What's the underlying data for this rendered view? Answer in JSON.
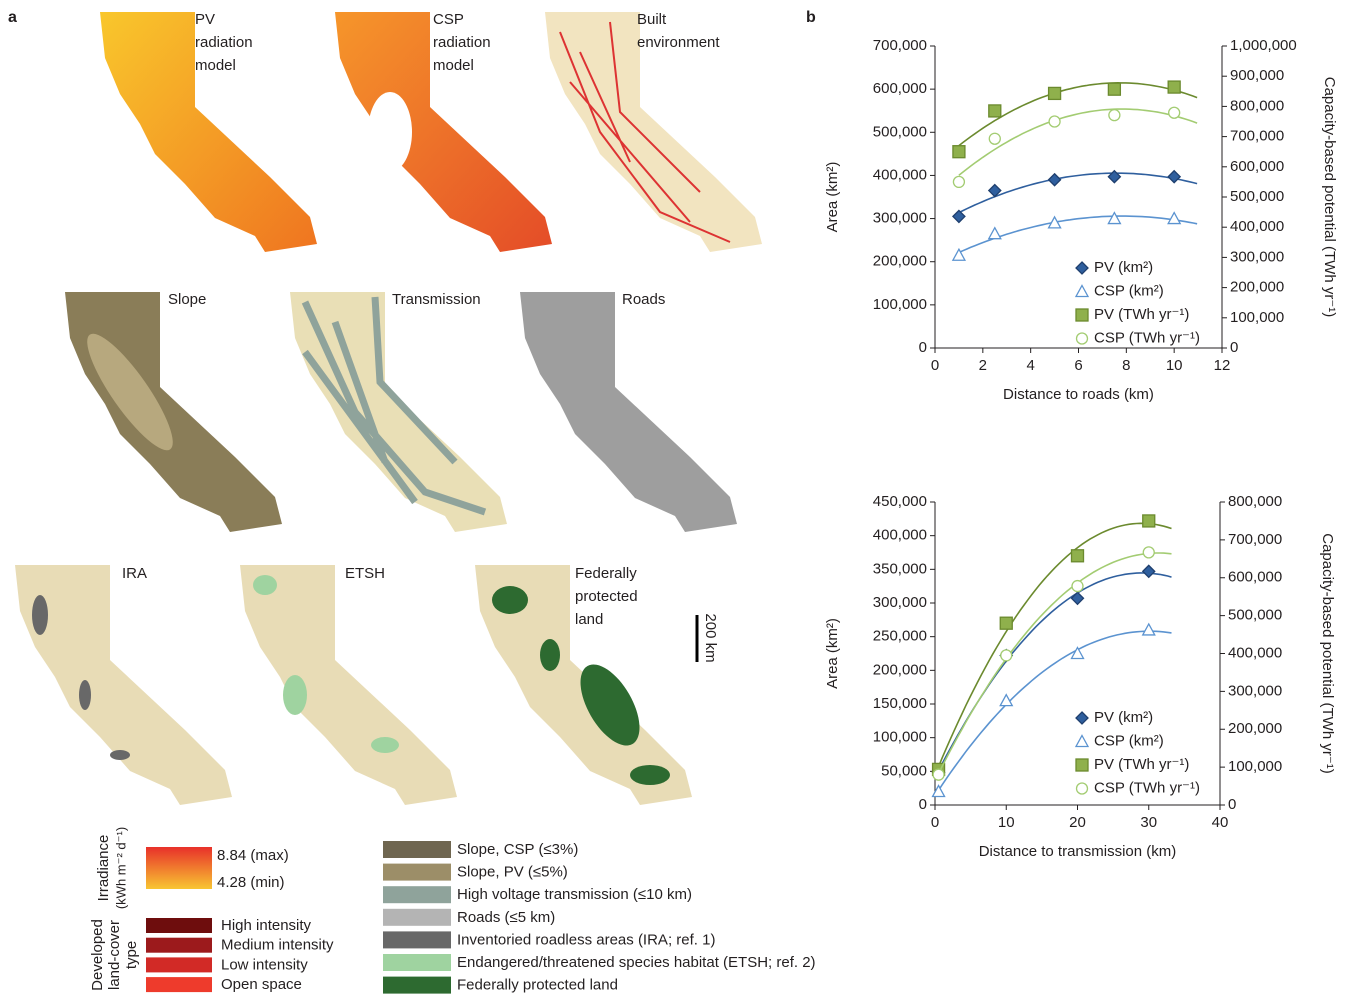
{
  "panel_labels": [
    "a",
    "b"
  ],
  "maps": [
    {
      "label": [
        "PV",
        "radiation",
        "model"
      ]
    },
    {
      "label": [
        "CSP",
        "radiation",
        "model"
      ]
    },
    {
      "label": [
        "Built",
        "environment"
      ]
    },
    {
      "label": [
        "Slope"
      ]
    },
    {
      "label": [
        "Transmission"
      ]
    },
    {
      "label": [
        "Roads"
      ]
    },
    {
      "label": [
        "IRA"
      ]
    },
    {
      "label": [
        "ETSH"
      ]
    },
    {
      "label": [
        "Federally",
        "protected",
        "land"
      ]
    }
  ],
  "scale_bar": "200 km",
  "irradiance_legend": {
    "title": [
      "Irradiance",
      "(kWh m⁻² d⁻¹)"
    ],
    "max": "8.84 (max)",
    "min": "4.28 (min)"
  },
  "landcover_legend": {
    "title": [
      "Developed",
      "land-cover",
      "type"
    ],
    "items": [
      {
        "name": "High intensity",
        "color": "#6e0d0d"
      },
      {
        "name": "Medium intensity",
        "color": "#9c1a1c"
      },
      {
        "name": "Low intensity",
        "color": "#d22a26"
      },
      {
        "name": "Open space",
        "color": "#ee3b2c"
      }
    ]
  },
  "layer_legend": [
    {
      "name": "Slope, CSP (≤3%)",
      "color": "#6f6650"
    },
    {
      "name": "Slope, PV (≤5%)",
      "color": "#9c8e68"
    },
    {
      "name": "High voltage transmission (≤10 km)",
      "color": "#8fa39b"
    },
    {
      "name": "Roads (≤5 km)",
      "color": "#b4b4b4"
    },
    {
      "name": "Inventoried roadless areas (IRA; ref. 1)",
      "color": "#686868"
    },
    {
      "name": "Endangered/threatened species habitat (ETSH; ref. 2)",
      "color": "#9fd3a0"
    },
    {
      "name": "Federally protected land",
      "color": "#2d6a30"
    }
  ],
  "chart_data": [
    {
      "type": "scatter",
      "x_label": "Distance to roads (km)",
      "y_label": "Area (km²)",
      "y2_label": "Capacity-based potential (TWh yr⁻¹)",
      "x": [
        1,
        2.5,
        5,
        7.5,
        10
      ],
      "xlim": [
        0,
        12
      ],
      "xticks": [
        0,
        2,
        4,
        6,
        8,
        10,
        12
      ],
      "ylim": [
        0,
        700000
      ],
      "yticks": [
        0,
        {
          "value": 100000,
          "label": "100,000"
        },
        {
          "value": 200000,
          "label": "200,000"
        },
        {
          "value": 300000,
          "label": "300,000"
        },
        {
          "value": 400000,
          "label": "400,000"
        },
        {
          "value": 500000,
          "label": "500,000"
        },
        {
          "value": 600000,
          "label": "600,000"
        },
        {
          "value": 700000,
          "label": "700,000"
        }
      ],
      "y2lim": [
        0,
        1000000
      ],
      "y2ticks": [
        0,
        {
          "value": 100000,
          "label": "100,000"
        },
        {
          "value": 200000,
          "label": "200,000"
        },
        {
          "value": 300000,
          "label": "300,000"
        },
        {
          "value": 400000,
          "label": "400,000"
        },
        {
          "value": 500000,
          "label": "500,000"
        },
        {
          "value": 600000,
          "label": "600,000"
        },
        {
          "value": 700000,
          "label": "700,000"
        },
        {
          "value": 800000,
          "label": "800,000"
        },
        {
          "value": 900000,
          "label": "900,000"
        },
        {
          "value": 1000000,
          "label": "1,000,000"
        }
      ],
      "series": [
        {
          "name": "PV (km²)",
          "color": "#2f5f9e",
          "marker": "diamond",
          "filled": true,
          "values": [
            305000,
            365000,
            390000,
            397000,
            397000
          ]
        },
        {
          "name": "CSP (km²)",
          "color": "#5b93d0",
          "marker": "triangle",
          "filled": false,
          "values": [
            215000,
            265000,
            290000,
            300000,
            300000
          ]
        },
        {
          "name": "PV (TWh yr⁻¹)",
          "color": "#6b8a2e",
          "marker": "square",
          "filled": true,
          "axis": "y2",
          "values": [
            650000,
            785000,
            843000,
            857000,
            864000
          ]
        },
        {
          "name": "CSP (TWh yr⁻¹)",
          "color": "#a3cc72",
          "marker": "circle",
          "filled": false,
          "axis": "y2",
          "values": [
            550000,
            693000,
            750000,
            771000,
            779000
          ]
        }
      ]
    },
    {
      "type": "scatter",
      "x_label": "Distance to transmission (km)",
      "y_label": "Area (km²)",
      "y2_label": "Capacity-based potential (TWh yr⁻¹)",
      "x": [
        0.5,
        10,
        20,
        30
      ],
      "xlim": [
        0,
        40
      ],
      "xticks": [
        0,
        10,
        20,
        30,
        40
      ],
      "ylim": [
        0,
        450000
      ],
      "yticks": [
        0,
        {
          "value": 50000,
          "label": "50,000"
        },
        {
          "value": 100000,
          "label": "100,000"
        },
        {
          "value": 150000,
          "label": "150,000"
        },
        {
          "value": 200000,
          "label": "200,000"
        },
        {
          "value": 250000,
          "label": "250,000"
        },
        {
          "value": 300000,
          "label": "300,000"
        },
        {
          "value": 350000,
          "label": "350,000"
        },
        {
          "value": 400000,
          "label": "400,000"
        },
        {
          "value": 450000,
          "label": "450,000"
        }
      ],
      "y2lim": [
        0,
        800000
      ],
      "y2ticks": [
        0,
        {
          "value": 100000,
          "label": "100,000"
        },
        {
          "value": 200000,
          "label": "200,000"
        },
        {
          "value": 300000,
          "label": "300,000"
        },
        {
          "value": 400000,
          "label": "400,000"
        },
        {
          "value": 500000,
          "label": "500,000"
        },
        {
          "value": 600000,
          "label": "600,000"
        },
        {
          "value": 700000,
          "label": "700,000"
        },
        {
          "value": 800000,
          "label": "800,000"
        }
      ],
      "series": [
        {
          "name": "PV (km²)",
          "color": "#2f5f9e",
          "marker": "diamond",
          "filled": true,
          "values": [
            48000,
            222000,
            307000,
            347000
          ]
        },
        {
          "name": "CSP (km²)",
          "color": "#5b93d0",
          "marker": "triangle",
          "filled": false,
          "values": [
            20000,
            155000,
            225000,
            260000
          ]
        },
        {
          "name": "PV (TWh yr⁻¹)",
          "color": "#6b8a2e",
          "marker": "square",
          "filled": true,
          "axis": "y2",
          "values": [
            94000,
            480000,
            658000,
            750000
          ]
        },
        {
          "name": "CSP (TWh yr⁻¹)",
          "color": "#a3cc72",
          "marker": "circle",
          "filled": false,
          "axis": "y2",
          "values": [
            80000,
            395000,
            578000,
            667000
          ]
        }
      ]
    }
  ]
}
